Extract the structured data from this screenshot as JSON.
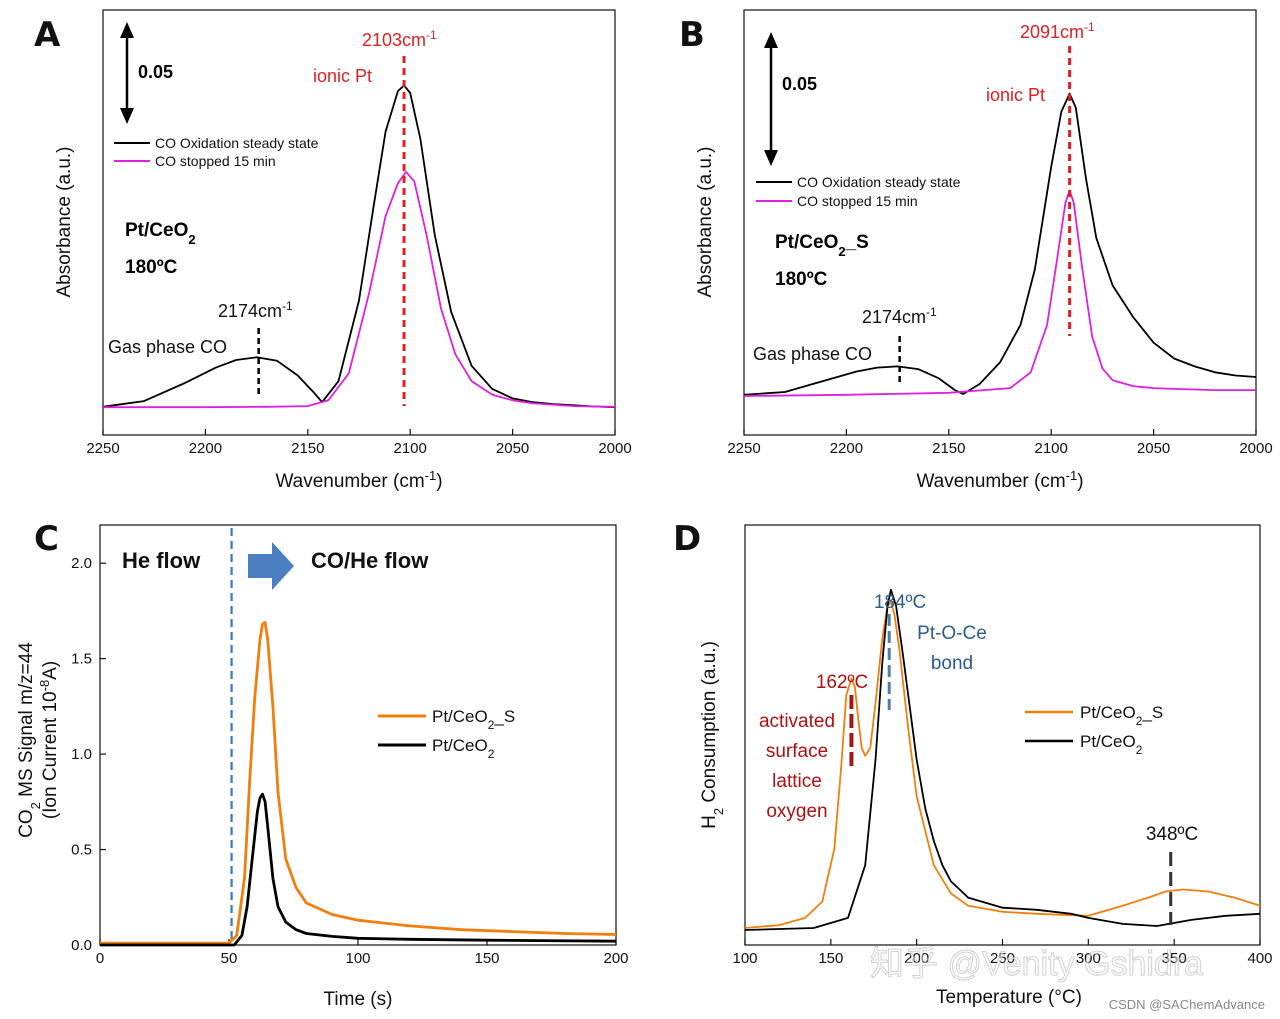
{
  "chart_data": [
    {
      "type": "line",
      "panel": "A",
      "xlabel": "Wavenumber (cm",
      "xlabel_sup": "-1",
      "xlabel_tail": ")",
      "ylabel": "Absorbance (a.u.)",
      "xlim": [
        2250,
        2000
      ],
      "ylim": [
        0,
        0.088
      ],
      "xticks": [
        "2250",
        "2200",
        "2150",
        "2100",
        "2050",
        "2000"
      ],
      "scale_bar": "0.05",
      "sample": "Pt/CeO",
      "sample_sub": "2",
      "temp": "180ºC",
      "peak_label": "2103cm",
      "peak_label_sup": "-1",
      "peak_wn": 2103,
      "ionic_label": "ionic Pt",
      "gas_label": "Gas phase CO",
      "gas_peak_label": "2174cm",
      "gas_peak_label_sup": "-1",
      "gas_wn": 2174,
      "series": [
        {
          "name": "CO Oxidation steady state",
          "color": "#000000",
          "x": [
            2250,
            2230,
            2210,
            2195,
            2185,
            2175,
            2165,
            2155,
            2147,
            2143,
            2135,
            2125,
            2118,
            2112,
            2106,
            2103,
            2100,
            2095,
            2088,
            2080,
            2070,
            2060,
            2050,
            2040,
            2030,
            2020,
            2010,
            2000
          ],
          "y": [
            0.0003,
            0.0018,
            0.0065,
            0.0105,
            0.0125,
            0.0132,
            0.0123,
            0.0085,
            0.004,
            0.0015,
            0.007,
            0.028,
            0.052,
            0.072,
            0.0825,
            0.084,
            0.082,
            0.07,
            0.045,
            0.025,
            0.011,
            0.005,
            0.0025,
            0.0015,
            0.001,
            0.0007,
            0.0004,
            0.0002
          ]
        },
        {
          "name": "CO stopped 15 min",
          "color": "#e020e0",
          "x": [
            2250,
            2200,
            2170,
            2150,
            2140,
            2130,
            2120,
            2112,
            2106,
            2102,
            2098,
            2092,
            2085,
            2078,
            2070,
            2060,
            2050,
            2040,
            2020,
            2000
          ],
          "y": [
            0.0002,
            0.0002,
            0.0003,
            0.0005,
            0.002,
            0.009,
            0.03,
            0.05,
            0.0585,
            0.0615,
            0.059,
            0.045,
            0.026,
            0.014,
            0.007,
            0.0035,
            0.002,
            0.0012,
            0.0005,
            0.0003
          ]
        }
      ]
    },
    {
      "type": "line",
      "panel": "B",
      "xlabel": "Wavenumber (cm",
      "xlabel_sup": "-1",
      "xlabel_tail": ")",
      "ylabel": "Absorbance (a.u.)",
      "xlim": [
        2250,
        2000
      ],
      "ylim": [
        0,
        0.082
      ],
      "xticks": [
        "2250",
        "2200",
        "2150",
        "2100",
        "2050",
        "2000"
      ],
      "scale_bar": "0.05",
      "sample": "Pt/CeO",
      "sample_sub": "2",
      "sample_tail": "_S",
      "temp": "180ºC",
      "peak_label": "2091cm",
      "peak_label_sup": "-1",
      "peak_wn": 2091,
      "ionic_label": "ionic Pt",
      "gas_label": "Gas phase CO",
      "gas_peak_label": "2174cm",
      "gas_peak_label_sup": "-1",
      "gas_wn": 2174,
      "series": [
        {
          "name": "CO Oxidation steady state",
          "color": "#000000",
          "x": [
            2250,
            2230,
            2210,
            2195,
            2185,
            2175,
            2165,
            2155,
            2147,
            2143,
            2135,
            2125,
            2115,
            2108,
            2100,
            2095,
            2091,
            2088,
            2083,
            2078,
            2070,
            2060,
            2050,
            2040,
            2030,
            2020,
            2010,
            2000
          ],
          "y": [
            0.0003,
            0.001,
            0.004,
            0.0062,
            0.0072,
            0.0075,
            0.0068,
            0.0045,
            0.0015,
            0.0005,
            0.003,
            0.0085,
            0.018,
            0.032,
            0.058,
            0.072,
            0.0765,
            0.073,
            0.055,
            0.04,
            0.028,
            0.02,
            0.0135,
            0.0095,
            0.0075,
            0.006,
            0.0052,
            0.0048
          ]
        },
        {
          "name": "CO stopped 15 min",
          "color": "#e020e0",
          "x": [
            2250,
            2200,
            2150,
            2120,
            2110,
            2102,
            2097,
            2093,
            2091,
            2089,
            2085,
            2080,
            2075,
            2070,
            2060,
            2050,
            2040,
            2020,
            2000
          ],
          "y": [
            0.0,
            0.0003,
            0.0008,
            0.002,
            0.006,
            0.018,
            0.035,
            0.049,
            0.052,
            0.049,
            0.033,
            0.015,
            0.007,
            0.004,
            0.0025,
            0.002,
            0.0018,
            0.0015,
            0.0015
          ]
        }
      ]
    },
    {
      "type": "line",
      "panel": "C",
      "xlabel": "Time (s)",
      "ylabel_line1_pre": "CO",
      "ylabel_line1_sub": "2",
      "ylabel_line1_post": " MS Signal m/z=44",
      "ylabel_line2_pre": "(Ion Current 10",
      "ylabel_line2_sup": "-8",
      "ylabel_line2_post": "A)",
      "xlim": [
        0,
        200
      ],
      "ylim": [
        0,
        2.2
      ],
      "xticks": [
        "0",
        "50",
        "100",
        "150",
        "200"
      ],
      "yticks": [
        "0.0",
        "0.5",
        "1.0",
        "1.5",
        "2.0"
      ],
      "he_flow": "He flow",
      "co_flow": "CO/He flow",
      "switch_time": 51,
      "series": [
        {
          "name_pre": "Pt/CeO",
          "name_sub": "2",
          "name_post": "_S",
          "color": "#f07f0e",
          "x": [
            0,
            50,
            53,
            56,
            58,
            60,
            62,
            63,
            64,
            65,
            67,
            69,
            72,
            76,
            80,
            90,
            100,
            120,
            140,
            160,
            180,
            200
          ],
          "y": [
            0.01,
            0.01,
            0.05,
            0.35,
            0.85,
            1.3,
            1.6,
            1.68,
            1.69,
            1.6,
            1.25,
            0.8,
            0.45,
            0.3,
            0.22,
            0.16,
            0.13,
            0.1,
            0.08,
            0.07,
            0.06,
            0.055
          ]
        },
        {
          "name_pre": "Pt/CeO",
          "name_sub": "2",
          "name_post": "",
          "color": "#000000",
          "x": [
            0,
            52,
            55,
            57,
            59,
            61,
            62,
            63,
            64,
            65,
            67,
            69,
            72,
            76,
            80,
            90,
            100,
            120,
            150,
            200
          ],
          "y": [
            0.0,
            0.0,
            0.05,
            0.2,
            0.45,
            0.7,
            0.77,
            0.79,
            0.75,
            0.62,
            0.35,
            0.2,
            0.12,
            0.08,
            0.06,
            0.045,
            0.035,
            0.03,
            0.025,
            0.02
          ]
        }
      ]
    },
    {
      "type": "line",
      "panel": "D",
      "xlabel": "Temperature (°C)",
      "ylabel_pre": "H",
      "ylabel_sub": "2",
      "ylabel_post": " Consumption (a.u.)",
      "xlim": [
        100,
        400
      ],
      "ylim": [
        0,
        1.0
      ],
      "xticks": [
        "100",
        "150",
        "200",
        "250",
        "300",
        "350",
        "400"
      ],
      "peak1_label": "162ºC",
      "peak1_t": 162,
      "peak1_desc": [
        "activated",
        "surface",
        "lattice",
        "oxygen"
      ],
      "peak2_label": "184ºC",
      "peak2_t": 184,
      "peak2_desc": [
        "Pt-O-Ce",
        "bond"
      ],
      "peak3_label": "348ºC",
      "peak3_t": 348,
      "series": [
        {
          "name_pre": "Pt/CeO",
          "name_sub": "2",
          "name_post": "_S",
          "color": "#f07f0e",
          "x": [
            100,
            120,
            135,
            145,
            152,
            156,
            159,
            162,
            164,
            166,
            168,
            170,
            173,
            176,
            180,
            183,
            185,
            187,
            190,
            195,
            200,
            210,
            220,
            230,
            250,
            270,
            300,
            320,
            335,
            345,
            355,
            370,
            385,
            400
          ],
          "y": [
            0.005,
            0.012,
            0.03,
            0.07,
            0.2,
            0.4,
            0.58,
            0.62,
            0.6,
            0.52,
            0.45,
            0.43,
            0.45,
            0.56,
            0.72,
            0.8,
            0.81,
            0.78,
            0.69,
            0.5,
            0.33,
            0.16,
            0.09,
            0.06,
            0.045,
            0.04,
            0.035,
            0.06,
            0.08,
            0.095,
            0.1,
            0.095,
            0.08,
            0.06
          ]
        },
        {
          "name_pre": "Pt/CeO",
          "name_sub": "2",
          "name_post": "",
          "color": "#000000",
          "x": [
            100,
            140,
            160,
            170,
            176,
            180,
            183,
            185,
            188,
            192,
            196,
            200,
            205,
            210,
            215,
            220,
            230,
            250,
            270,
            290,
            300,
            320,
            340,
            360,
            380,
            400
          ],
          "y": [
            0.0,
            0.005,
            0.03,
            0.16,
            0.42,
            0.66,
            0.8,
            0.84,
            0.8,
            0.68,
            0.55,
            0.42,
            0.3,
            0.22,
            0.16,
            0.12,
            0.08,
            0.055,
            0.05,
            0.04,
            0.03,
            0.015,
            0.01,
            0.025,
            0.035,
            0.04
          ]
        }
      ]
    }
  ],
  "watermark": "知乎 @Venity Gshidra",
  "credit": "CSDN @SAChemAdvance"
}
